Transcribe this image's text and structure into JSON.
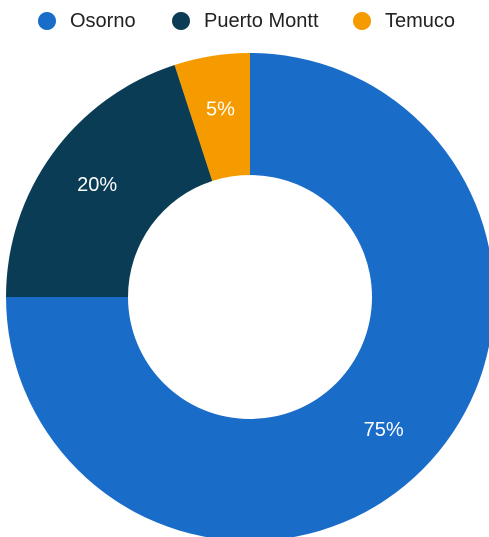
{
  "chart_data": {
    "type": "pie",
    "donut": true,
    "categories": [
      "Osorno",
      "Puerto Montt",
      "Temuco"
    ],
    "values": [
      75,
      20,
      5
    ],
    "value_labels": [
      "75%",
      "20%",
      "5%"
    ],
    "colors": [
      "#1a6cc9",
      "#0a3c55",
      "#f59b00"
    ],
    "legend_position": "top",
    "start_angle": "top, clockwise"
  }
}
